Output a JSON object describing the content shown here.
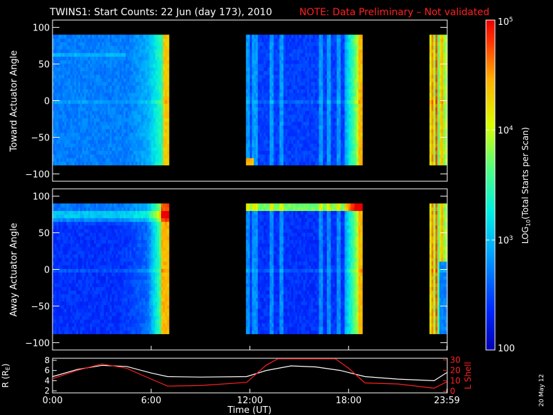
{
  "title": "TWINS1: Start Counts: 22 Jun (day 173), 2010",
  "note": "NOTE: Data Preliminary – Not validated",
  "date_stamp": "20 May 12",
  "colors": {
    "note": "#ff2020",
    "r_line": "#ffffff",
    "l_line": "#ff2020",
    "background": "#000000"
  },
  "chart_data": [
    {
      "type": "heatmap",
      "ylabel": "Toward Actuator Angle",
      "ylim": [
        -110,
        110
      ],
      "y_ticks": [
        "100",
        "50",
        "0",
        "−50",
        "−100"
      ],
      "y_tick_values": [
        100,
        50,
        0,
        -50,
        -100
      ],
      "xlim_hours": [
        0,
        24
      ],
      "y_range_data": [
        -88,
        90
      ],
      "data_gaps_hours": [
        [
          7.1,
          11.8
        ],
        [
          18.9,
          22.9
        ]
      ],
      "log_scale": true
    },
    {
      "type": "heatmap",
      "ylabel": "Away Actuator Angle",
      "ylim": [
        -110,
        110
      ],
      "y_ticks": [
        "100",
        "50",
        "0",
        "−50",
        "−100"
      ],
      "y_tick_values": [
        100,
        50,
        0,
        -50,
        -100
      ],
      "xlim_hours": [
        0,
        24
      ],
      "y_range_data": [
        -88,
        90
      ],
      "data_gaps_hours": [
        [
          7.1,
          11.8
        ],
        [
          18.9,
          22.9
        ]
      ],
      "log_scale": true
    },
    {
      "type": "line",
      "xlabel": "Time (UT)",
      "x_ticks": [
        "0:00",
        "6:00",
        "12:00",
        "18:00",
        "23:59"
      ],
      "x_tick_hours": [
        0,
        6,
        12,
        18,
        23.98
      ],
      "ylabel_left": "R (RE)",
      "ylim_left": [
        2,
        8
      ],
      "left_ticks": [
        "8",
        "6",
        "4",
        "2"
      ],
      "ylabel_right": "L Shell",
      "ylim_right": [
        0,
        30
      ],
      "right_ticks": [
        "30",
        "20",
        "10",
        "0"
      ],
      "series": [
        {
          "name": "R",
          "axis": "left",
          "x": [
            0,
            1.5,
            3,
            4.5,
            6,
            7,
            9,
            11.8,
            13,
            14.5,
            16,
            17.5,
            19,
            21,
            23.2,
            23.98
          ],
          "y": [
            4.8,
            6.2,
            7.0,
            6.8,
            5.5,
            4.8,
            4.7,
            4.8,
            6.0,
            6.9,
            6.7,
            6.0,
            4.8,
            4.3,
            4.0,
            5.6
          ]
        },
        {
          "name": "L Shell",
          "axis": "right",
          "x": [
            0,
            1.5,
            3,
            4.5,
            5.5,
            7,
            9,
            11.8,
            13,
            13.7,
            17.2,
            18,
            19,
            21,
            23.2,
            23.98
          ],
          "y": [
            12,
            20,
            26,
            22,
            15,
            5,
            5.5,
            8.5,
            25,
            31,
            31,
            22,
            8,
            7,
            3,
            9
          ]
        }
      ]
    }
  ],
  "colorbar": {
    "label": "LOG10(Total Starts per Scan)",
    "scale": "log",
    "range": [
      100,
      100000
    ],
    "ticks": [
      {
        "label": "100",
        "value": 100
      },
      {
        "label": "10^3",
        "value": 1000
      },
      {
        "label": "10^4",
        "value": 10000
      },
      {
        "label": "10^5",
        "value": 100000
      }
    ],
    "colors": [
      "#0000b0",
      "#0028ff",
      "#00a8ff",
      "#00f0e0",
      "#50ff80",
      "#d8ff00",
      "#ffb000",
      "#ff3000",
      "#e80000"
    ]
  }
}
